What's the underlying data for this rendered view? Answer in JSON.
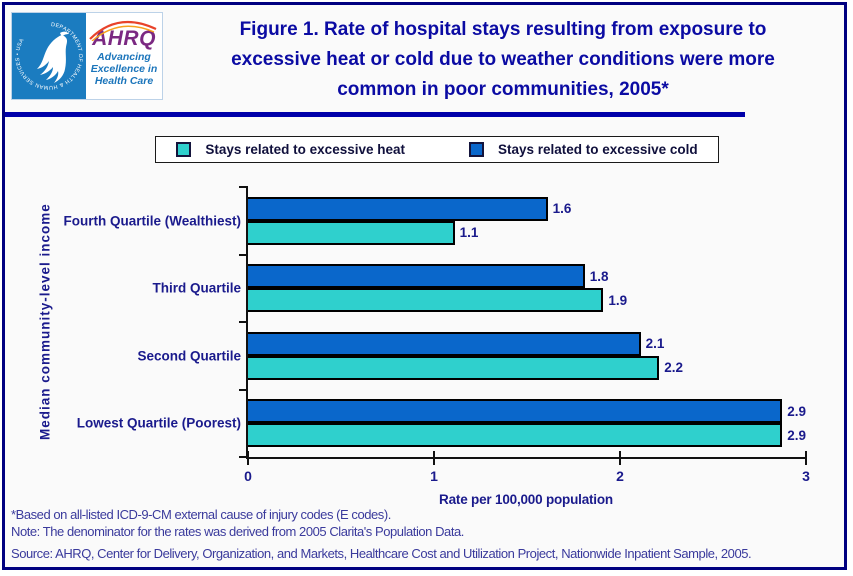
{
  "header": {
    "logo": {
      "ring_text": "DEPARTMENT OF HEALTH & HUMAN SERVICES • USA",
      "acronym": "AHRQ",
      "tagline_lines": [
        "Advancing",
        "Excellence in",
        "Health Care"
      ]
    },
    "title_lines": [
      "Figure 1. Rate of hospital stays resulting from exposure to",
      "excessive heat or cold due to weather conditions were more",
      "common in poor communities, 2005*"
    ]
  },
  "legend": {
    "items": [
      {
        "label": "Stays related to excessive heat",
        "color": "#2fd0cd"
      },
      {
        "label": "Stays related to excessive cold",
        "color": "#0a67cb"
      }
    ]
  },
  "chart_data": {
    "type": "bar",
    "orientation": "horizontal",
    "title": "Figure 1. Rate of hospital stays resulting from exposure to excessive heat or cold due to weather conditions were more common in poor communities, 2005*",
    "categories": [
      "Fourth Quartile (Wealthiest)",
      "Third Quartile",
      "Second Quartile",
      "Lowest Quartile (Poorest)"
    ],
    "series": [
      {
        "name": "Stays related to excessive heat",
        "color": "#2fd0cd",
        "values": [
          1.1,
          1.9,
          2.2,
          2.9
        ]
      },
      {
        "name": "Stays related to excessive cold",
        "color": "#0a67cb",
        "values": [
          1.6,
          1.8,
          2.1,
          2.9
        ]
      }
    ],
    "row_series_order_top_to_bottom": [
      1,
      0
    ],
    "xlabel": "Rate per 100,000 population",
    "ylabel": "Median community-level income",
    "xlim": [
      0,
      3
    ],
    "xticks": [
      0,
      1,
      2,
      3
    ],
    "value_label_decimals": 1,
    "legend_position": "top",
    "grid": false
  },
  "footnotes": {
    "lines": [
      "*Based on all-listed ICD-9-CM external cause of injury codes (E codes).",
      "Note: The denominator for the rates was derived from 2005 Clarita's Population Data.",
      "Source: AHRQ, Center for Delivery, Organization, and Markets, Healthcare Cost and Utilization Project, Nationwide Inpatient Sample, 2005."
    ]
  }
}
